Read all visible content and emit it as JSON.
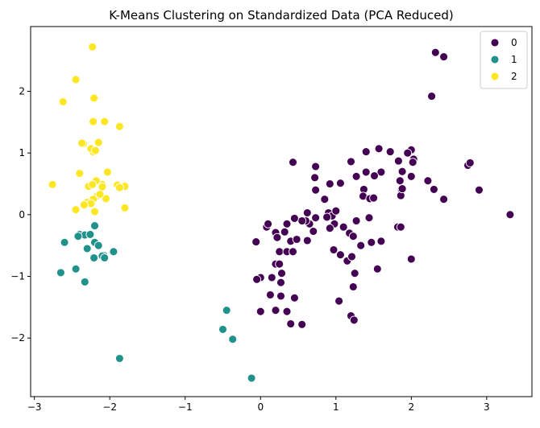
{
  "chart_data": {
    "type": "scatter",
    "title": "K-Means Clustering on Standardized Data (PCA Reduced)",
    "xlabel": "",
    "ylabel": "",
    "xlim": [
      -3.05,
      3.6
    ],
    "ylim": [
      -2.95,
      3.05
    ],
    "xticks": [
      -3,
      -2,
      -1,
      0,
      1,
      2,
      3
    ],
    "yticks": [
      -2,
      -1,
      0,
      1,
      2
    ],
    "xtick_labels": [
      "−3",
      "−2",
      "−1",
      "0",
      "1",
      "2",
      "3"
    ],
    "ytick_labels": [
      "−2",
      "−1",
      "0",
      "1",
      "2"
    ],
    "grid": false,
    "legend_position": "top-right",
    "series": [
      {
        "name": "0",
        "color": "#440154",
        "points": [
          [
            2.32,
            2.63
          ],
          [
            2.43,
            2.56
          ],
          [
            2.27,
            1.92
          ],
          [
            2.75,
            0.8
          ],
          [
            2.78,
            0.84
          ],
          [
            2.9,
            0.4
          ],
          [
            3.31,
            0.0
          ],
          [
            2.43,
            0.25
          ],
          [
            2.3,
            0.41
          ],
          [
            2.22,
            0.55
          ],
          [
            2.0,
            1.05
          ],
          [
            1.95,
            1.0
          ],
          [
            2.03,
            0.9
          ],
          [
            2.02,
            0.85
          ],
          [
            2.0,
            0.62
          ],
          [
            1.88,
            0.7
          ],
          [
            1.85,
            0.55
          ],
          [
            1.87,
            0.4
          ],
          [
            1.86,
            0.31
          ],
          [
            1.88,
            0.42
          ],
          [
            1.83,
            0.87
          ],
          [
            1.72,
            1.02
          ],
          [
            1.57,
            1.07
          ],
          [
            1.4,
            1.02
          ],
          [
            1.6,
            0.69
          ],
          [
            1.51,
            0.63
          ],
          [
            1.4,
            0.69
          ],
          [
            1.37,
            0.41
          ],
          [
            1.36,
            0.3
          ],
          [
            1.45,
            0.26
          ],
          [
            1.5,
            0.27
          ],
          [
            1.27,
            0.62
          ],
          [
            1.2,
            0.86
          ],
          [
            1.06,
            0.51
          ],
          [
            0.92,
            0.5
          ],
          [
            0.73,
            0.78
          ],
          [
            0.72,
            0.6
          ],
          [
            0.73,
            0.4
          ],
          [
            0.43,
            0.85
          ],
          [
            0.85,
            0.25
          ],
          [
            0.9,
            0.03
          ],
          [
            0.95,
            -0.02
          ],
          [
            1.0,
            0.06
          ],
          [
            0.88,
            -0.04
          ],
          [
            0.98,
            -0.15
          ],
          [
            0.92,
            -0.22
          ],
          [
            1.1,
            -0.2
          ],
          [
            1.18,
            -0.3
          ],
          [
            1.23,
            -0.35
          ],
          [
            1.27,
            -0.1
          ],
          [
            1.44,
            -0.05
          ],
          [
            1.82,
            -0.2
          ],
          [
            1.86,
            -0.2
          ],
          [
            0.73,
            -0.05
          ],
          [
            0.65,
            -0.15
          ],
          [
            0.7,
            -0.27
          ],
          [
            0.6,
            -0.1
          ],
          [
            0.62,
            0.03
          ],
          [
            0.55,
            -0.1
          ],
          [
            0.45,
            -0.06
          ],
          [
            0.35,
            -0.15
          ],
          [
            0.32,
            -0.28
          ],
          [
            0.2,
            -0.29
          ],
          [
            0.22,
            -0.37
          ],
          [
            0.08,
            -0.2
          ],
          [
            0.1,
            -0.15
          ],
          [
            -0.06,
            -0.44
          ],
          [
            0.4,
            -0.43
          ],
          [
            0.48,
            -0.4
          ],
          [
            0.62,
            -0.42
          ],
          [
            0.25,
            -0.6
          ],
          [
            0.35,
            -0.6
          ],
          [
            0.43,
            -0.6
          ],
          [
            0.97,
            -0.57
          ],
          [
            1.06,
            -0.65
          ],
          [
            1.15,
            -0.75
          ],
          [
            1.21,
            -0.68
          ],
          [
            1.33,
            -0.5
          ],
          [
            1.47,
            -0.45
          ],
          [
            1.6,
            -0.43
          ],
          [
            2.0,
            -0.72
          ],
          [
            1.55,
            -0.88
          ],
          [
            1.25,
            -0.95
          ],
          [
            1.23,
            -1.17
          ],
          [
            1.04,
            -1.4
          ],
          [
            0.2,
            -0.8
          ],
          [
            0.25,
            -0.8
          ],
          [
            0.28,
            -0.95
          ],
          [
            0.15,
            -1.02
          ],
          [
            0.0,
            -1.02
          ],
          [
            -0.05,
            -1.05
          ],
          [
            0.27,
            -1.1
          ],
          [
            0.13,
            -1.3
          ],
          [
            0.27,
            -1.32
          ],
          [
            0.45,
            -1.35
          ],
          [
            0.2,
            -1.55
          ],
          [
            0.0,
            -1.57
          ],
          [
            0.35,
            -1.57
          ],
          [
            0.4,
            -1.77
          ],
          [
            0.55,
            -1.78
          ],
          [
            1.2,
            -1.64
          ],
          [
            1.24,
            -1.71
          ]
        ]
      },
      {
        "name": "1",
        "color": "#21918c",
        "points": [
          [
            -2.2,
            -0.18
          ],
          [
            -2.6,
            -0.45
          ],
          [
            -2.4,
            -0.32
          ],
          [
            -2.33,
            -0.33
          ],
          [
            -2.42,
            -0.35
          ],
          [
            -2.26,
            -0.32
          ],
          [
            -2.2,
            -0.45
          ],
          [
            -2.15,
            -0.5
          ],
          [
            -2.3,
            -0.55
          ],
          [
            -1.95,
            -0.6
          ],
          [
            -2.08,
            -0.66
          ],
          [
            -2.1,
            -0.67
          ],
          [
            -2.07,
            -0.7
          ],
          [
            -2.21,
            -0.7
          ],
          [
            -2.45,
            -0.88
          ],
          [
            -2.65,
            -0.94
          ],
          [
            -2.33,
            -1.09
          ],
          [
            -1.87,
            -2.33
          ],
          [
            -0.45,
            -1.55
          ],
          [
            -0.5,
            -1.86
          ],
          [
            -0.37,
            -2.02
          ],
          [
            -0.12,
            -2.65
          ]
        ]
      },
      {
        "name": "2",
        "color": "#fde725",
        "points": [
          [
            -2.23,
            2.72
          ],
          [
            -2.45,
            2.19
          ],
          [
            -2.62,
            1.83
          ],
          [
            -2.21,
            1.89
          ],
          [
            -2.22,
            1.51
          ],
          [
            -2.07,
            1.51
          ],
          [
            -1.87,
            1.43
          ],
          [
            -2.35,
            1.15
          ],
          [
            -2.37,
            1.16
          ],
          [
            -2.15,
            1.17
          ],
          [
            -2.22,
            1.02
          ],
          [
            -2.25,
            1.07
          ],
          [
            -2.19,
            1.04
          ],
          [
            -2.03,
            0.69
          ],
          [
            -2.4,
            0.67
          ],
          [
            -1.8,
            0.46
          ],
          [
            -1.9,
            0.48
          ],
          [
            -1.87,
            0.44
          ],
          [
            -2.1,
            0.49
          ],
          [
            -2.1,
            0.45
          ],
          [
            -2.18,
            0.55
          ],
          [
            -2.28,
            0.46
          ],
          [
            -2.23,
            0.49
          ],
          [
            -2.76,
            0.49
          ],
          [
            -2.17,
            0.3
          ],
          [
            -2.05,
            0.26
          ],
          [
            -2.13,
            0.33
          ],
          [
            -2.22,
            0.25
          ],
          [
            -2.3,
            0.2
          ],
          [
            -2.25,
            0.18
          ],
          [
            -2.34,
            0.16
          ],
          [
            -2.45,
            0.08
          ],
          [
            -2.2,
            0.05
          ],
          [
            -1.8,
            0.11
          ]
        ]
      }
    ]
  }
}
